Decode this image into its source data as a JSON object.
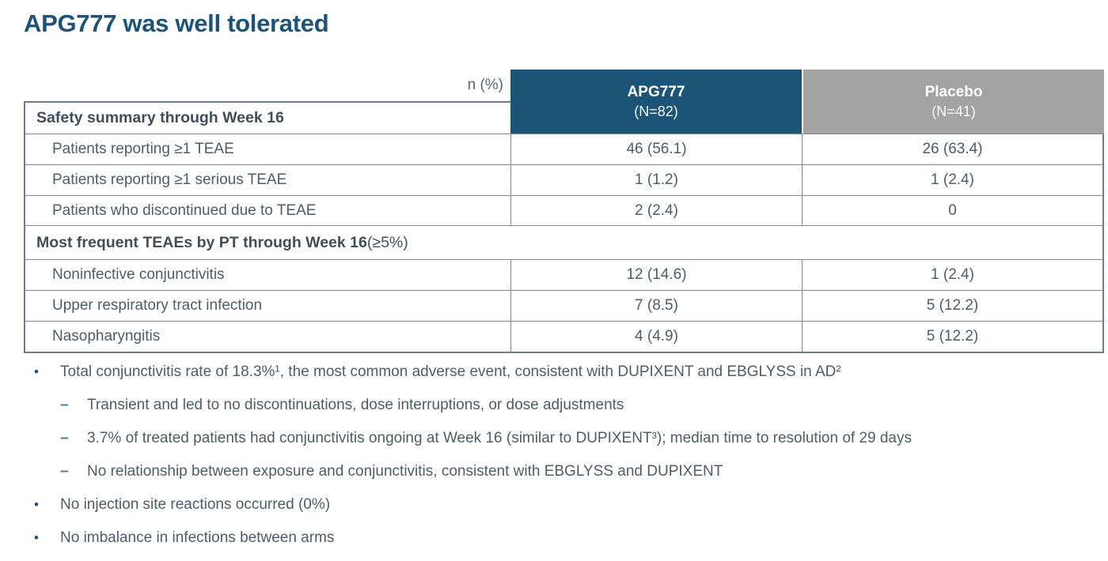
{
  "title": "APG777 was well tolerated",
  "colors": {
    "title_blue": "#1B5379",
    "apg_header_bg": "#1C5478",
    "placebo_header_bg": "#A3A3A3",
    "header_text": "#FFFFFF",
    "body_text": "#4E5C69",
    "table_border": "#7E8993"
  },
  "table": {
    "corner_label": "n (%)",
    "columns": [
      {
        "name": "APG777",
        "n_label": "(N=82)",
        "bg": "#1C5478"
      },
      {
        "name": "Placebo",
        "n_label": "(N=41)",
        "bg": "#A3A3A3"
      }
    ],
    "sections": [
      {
        "header": "Safety summary through Week 16",
        "header_suffix": "",
        "rows": [
          {
            "label": "Patients reporting ≥1 TEAE",
            "apg777": "46 (56.1)",
            "placebo": "26 (63.4)"
          },
          {
            "label": "Patients reporting ≥1 serious TEAE",
            "apg777": "1 (1.2)",
            "placebo": "1 (2.4)"
          },
          {
            "label": "Patients who discontinued due to TEAE",
            "apg777": "2 (2.4)",
            "placebo": "0"
          }
        ]
      },
      {
        "header": "Most frequent TEAEs by PT through Week 16",
        "header_suffix": " (≥5%)",
        "rows": [
          {
            "label": "Noninfective conjunctivitis",
            "apg777": "12 (14.6)",
            "placebo": "1 (2.4)"
          },
          {
            "label": "Upper respiratory tract infection",
            "apg777": "7 (8.5)",
            "placebo": "5 (12.2)"
          },
          {
            "label": "Nasopharyngitis",
            "apg777": "4 (4.9)",
            "placebo": "5 (12.2)"
          }
        ]
      }
    ]
  },
  "bullets": [
    {
      "level": 1,
      "text": "Total conjunctivitis rate of 18.3%¹, the most common adverse event, consistent with DUPIXENT and EBGLYSS in AD²"
    },
    {
      "level": 2,
      "text": "Transient and led to no discontinuations, dose interruptions, or dose adjustments"
    },
    {
      "level": 2,
      "text": "3.7% of treated patients had conjunctivitis ongoing at Week 16 (similar to DUPIXENT³); median time to resolution of 29 days"
    },
    {
      "level": 2,
      "text": "No relationship between exposure and conjunctivitis, consistent with EBGLYSS and DUPIXENT"
    },
    {
      "level": 1,
      "text": "No injection site reactions occurred (0%)"
    },
    {
      "level": 1,
      "text": "No imbalance in infections between arms"
    }
  ]
}
